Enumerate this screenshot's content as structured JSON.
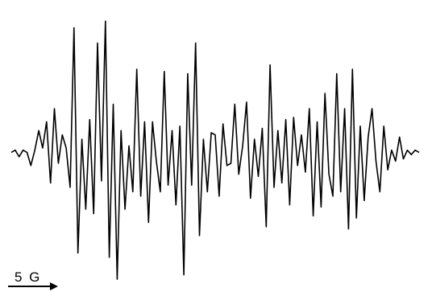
{
  "chart_data": {
    "type": "line",
    "title": "",
    "xlabel": "",
    "ylabel": "",
    "grid": false,
    "legend": "none",
    "axes_drawn": false,
    "scale_bar": {
      "label": "5 G",
      "field_span_G": 5
    },
    "series": [
      {
        "x": [
          0,
          0.5,
          1,
          1.5,
          2,
          2.5,
          3,
          3.5,
          4,
          4.5,
          5,
          5.5,
          6,
          6.5,
          7,
          7.5,
          8,
          8.5,
          9,
          9.5,
          10,
          10.5,
          11,
          11.5,
          12,
          12.5,
          13,
          13.5,
          14,
          14.5,
          15,
          15.5,
          16,
          16.5,
          17,
          17.5,
          18,
          18.5,
          19,
          19.5,
          20,
          20.5,
          21,
          21.5,
          22,
          22.5,
          23,
          23.5,
          24,
          24.5,
          25,
          25.5,
          26,
          26.5,
          27,
          27.5,
          28,
          28.5,
          29,
          29.5,
          30,
          30.5,
          31,
          31.5,
          32,
          32.5,
          33,
          33.5,
          34,
          34.5,
          35,
          35.5,
          36,
          36.5,
          37,
          37.5,
          38,
          38.5,
          39,
          39.5,
          40,
          40.5,
          41,
          41.5,
          42,
          42.5,
          43,
          43.5,
          44,
          44.5,
          45,
          45.5,
          46,
          46.5,
          47,
          47.5,
          48,
          48.5,
          49,
          49.5,
          50,
          50.5,
          51,
          51.5,
          52
        ],
        "y": [
          0,
          0.1,
          -0.2,
          0.1,
          0,
          -0.6,
          0.1,
          1.0,
          0.2,
          1.4,
          -1.4,
          2.0,
          -0.5,
          0.8,
          0.2,
          -1.6,
          5.7,
          -4.6,
          0.6,
          -2.6,
          1.5,
          -2.8,
          5.0,
          -1.3,
          6.0,
          -4.8,
          2.2,
          -5.8,
          1.0,
          -2.6,
          0.3,
          -1.8,
          3.8,
          -2.0,
          1.4,
          -3.2,
          1.4,
          -0.4,
          -1.8,
          3.7,
          -1.5,
          1.0,
          -2.4,
          1.2,
          -5.6,
          3.6,
          -1.5,
          5.0,
          -3.8,
          0.6,
          -1.8,
          0.9,
          0.8,
          -2.0,
          1.3,
          -0.6,
          -0.5,
          2.2,
          -1.0,
          0.3,
          2.3,
          -2.1,
          0.6,
          -1.1,
          1.1,
          -3.4,
          4.0,
          -1.6,
          1.0,
          -1.4,
          1.5,
          -2.4,
          1.6,
          -0.6,
          0.8,
          -0.9,
          2.0,
          -2.9,
          1.4,
          -2.5,
          2.7,
          -1.0,
          -2.0,
          3.6,
          -1.8,
          2.0,
          -3.5,
          3.8,
          -3.0,
          1.2,
          -2.2,
          0.7,
          2.0,
          -0.4,
          -1.8,
          1.2,
          -0.8,
          0.1,
          -0.4,
          0.7,
          -0.3,
          0.1,
          -0.1,
          0.1,
          0
        ]
      }
    ],
    "xlim": [
      0,
      52
    ],
    "ylim": [
      -6.2,
      6.6
    ],
    "color": "#000000"
  }
}
